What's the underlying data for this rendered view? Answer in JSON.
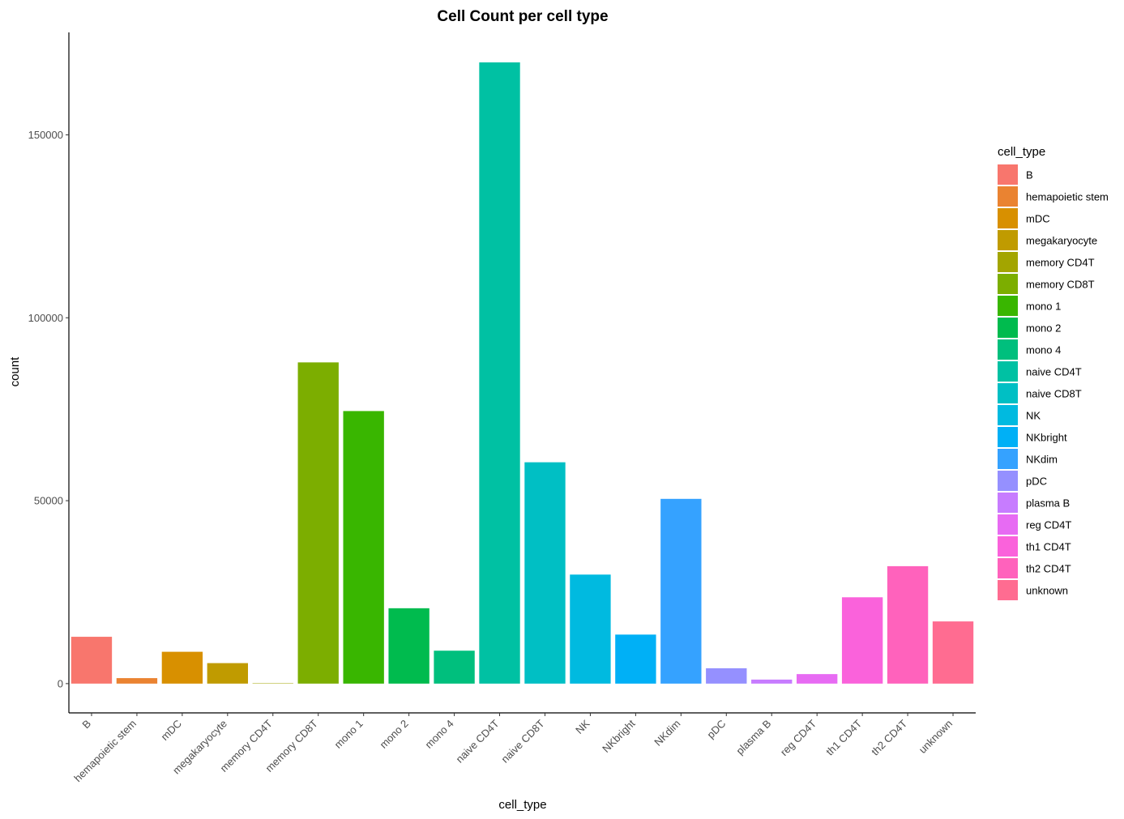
{
  "chart_data": {
    "type": "bar",
    "title": "Cell Count per cell type",
    "xlabel": "cell_type",
    "ylabel": "count",
    "ylim": [
      -8000,
      178000
    ],
    "yticks": [
      0,
      50000,
      100000,
      150000
    ],
    "ytick_labels": [
      "0",
      "50000",
      "100000",
      "150000"
    ],
    "grid": false,
    "legend": {
      "title": "cell_type",
      "position": "right"
    },
    "categories": [
      "B",
      "hemapoietic stem",
      "mDC",
      "megakaryocyte",
      "memory CD4T",
      "memory CD8T",
      "mono 1",
      "mono 2",
      "mono 4",
      "naive CD4T",
      "naive CD8T",
      "NK",
      "NKbright",
      "NKdim",
      "pDC",
      "plasma B",
      "reg CD4T",
      "th1 CD4T",
      "th2 CD4T",
      "unknown"
    ],
    "values": [
      12800,
      1500,
      8700,
      5600,
      100,
      87800,
      74500,
      20600,
      9000,
      169800,
      60500,
      29800,
      13400,
      50500,
      4200,
      1100,
      2600,
      23600,
      32100,
      17000
    ],
    "colors": [
      "#F8766D",
      "#EA8331",
      "#D89000",
      "#C09B00",
      "#A3A500",
      "#7CAE00",
      "#39B600",
      "#00BB4E",
      "#00BF7D",
      "#00C1A3",
      "#00BFC4",
      "#00BAE0",
      "#00B0F6",
      "#35A2FF",
      "#9590FF",
      "#C77CFF",
      "#E76BF3",
      "#FA62DB",
      "#FF62BC",
      "#FF6C91"
    ]
  }
}
